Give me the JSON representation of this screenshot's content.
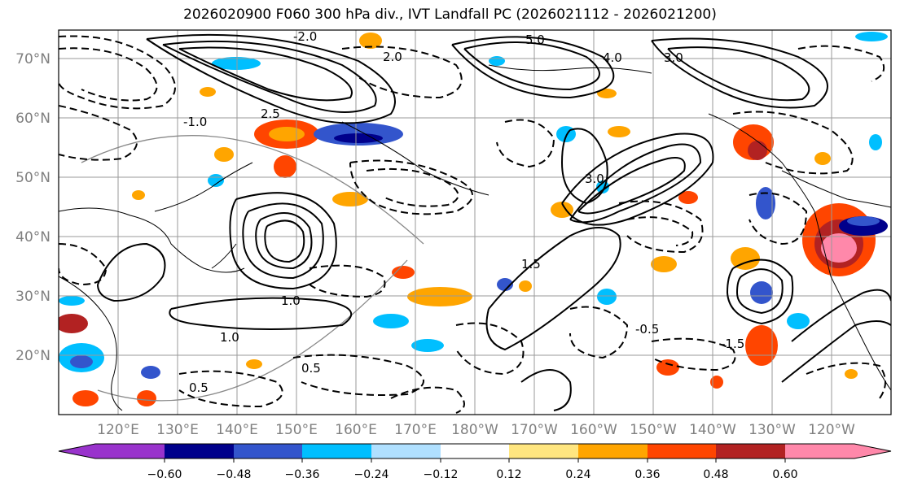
{
  "title": "2026020900 F060 300 hPa div., IVT Landfall PC (2026021112 - 2026021200)",
  "lat_ticks": [
    "70°N",
    "60°N",
    "50°N",
    "40°N",
    "30°N",
    "20°N"
  ],
  "lat_values": [
    70,
    60,
    50,
    40,
    30,
    20
  ],
  "lat_range": [
    10,
    75
  ],
  "lon_ticks": [
    "120°E",
    "130°E",
    "140°E",
    "150°E",
    "160°E",
    "170°E",
    "180°W",
    "170°W",
    "160°W",
    "150°W",
    "140°W",
    "130°W",
    "120°W"
  ],
  "colorbar": {
    "tick_labels": [
      "−0.60",
      "−0.48",
      "−0.36",
      "−0.24",
      "−0.12",
      "0.12",
      "0.24",
      "0.36",
      "0.48",
      "0.60"
    ],
    "colors": [
      "#9933cc",
      "#00008b",
      "#3355cc",
      "#00bfff",
      "#b0e0ff",
      "#ffffff",
      "#ffe680",
      "#ffa500",
      "#ff4500",
      "#b22222",
      "#ff88aa"
    ]
  },
  "contour_labels": [
    "2.0",
    "5.0",
    "3.0",
    "4.0",
    "1.0",
    "0.5",
    "1.5",
    "2.5",
    "-0.5",
    "-1.0",
    "-1.5",
    "-2.0",
    "0.5",
    "1.0",
    "3.0"
  ],
  "shading_colors": {
    "purple": "#9933cc",
    "navy": "#00008b",
    "royal": "#3355cc",
    "sky": "#00bfff",
    "pale_blue": "#b0e0ff",
    "yellow": "#ffe680",
    "orange": "#ffa500",
    "red_orange": "#ff4500",
    "dark_red": "#b22222",
    "pink": "#ff88aa"
  }
}
